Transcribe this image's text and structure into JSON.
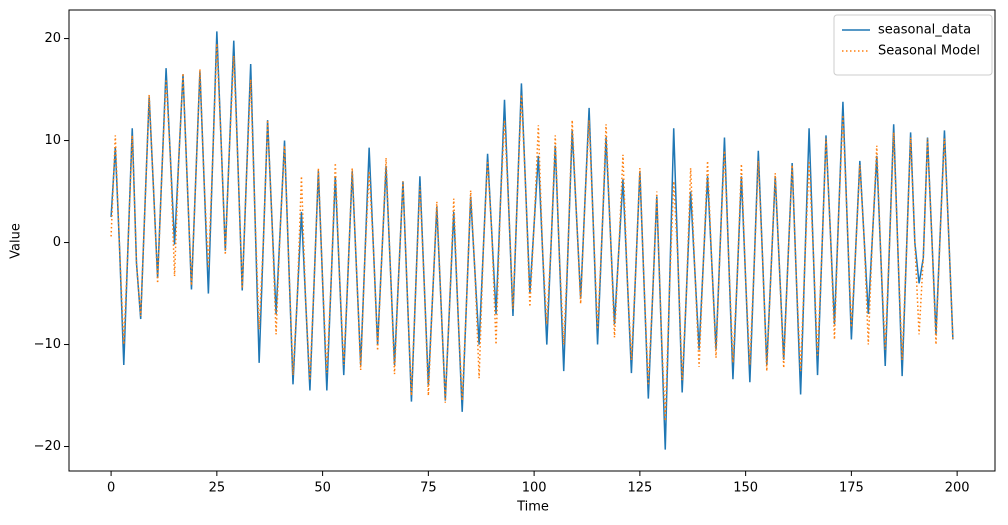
{
  "chart_data": {
    "type": "line",
    "xlabel": "Time",
    "ylabel": "Value",
    "xlim": [
      -9.95,
      208.95
    ],
    "ylim": [
      -22.4,
      22.8
    ],
    "xticks": [
      0,
      25,
      50,
      75,
      100,
      125,
      150,
      175,
      200
    ],
    "yticks": [
      {
        "value": -20,
        "label": "−20"
      },
      {
        "value": -10,
        "label": "−10"
      },
      0,
      10,
      20
    ],
    "grid": false,
    "legend": "upper right",
    "x": [
      0,
      1,
      2,
      3,
      4,
      5,
      6,
      7,
      8,
      9,
      10,
      11,
      12,
      13,
      14,
      15,
      16,
      17,
      18,
      19,
      20,
      21,
      22,
      23,
      24,
      25,
      26,
      27,
      28,
      29,
      30,
      31,
      32,
      33,
      34,
      35,
      36,
      37,
      38,
      39,
      40,
      41,
      42,
      43,
      44,
      45,
      46,
      47,
      48,
      49,
      50,
      51,
      52,
      53,
      54,
      55,
      56,
      57,
      58,
      59,
      60,
      61,
      62,
      63,
      64,
      65,
      66,
      67,
      68,
      69,
      70,
      71,
      72,
      73,
      74,
      75,
      76,
      77,
      78,
      79,
      80,
      81,
      82,
      83,
      84,
      85,
      86,
      87,
      88,
      89,
      90,
      91,
      92,
      93,
      94,
      95,
      96,
      97,
      98,
      99,
      100,
      101,
      102,
      103,
      104,
      105,
      106,
      107,
      108,
      109,
      110,
      111,
      112,
      113,
      114,
      115,
      116,
      117,
      118,
      119,
      120,
      121,
      122,
      123,
      124,
      125,
      126,
      127,
      128,
      129,
      130,
      131,
      132,
      133,
      134,
      135,
      136,
      137,
      138,
      139,
      140,
      141,
      142,
      143,
      144,
      145,
      146,
      147,
      148,
      149,
      150,
      151,
      152,
      153,
      154,
      155,
      156,
      157,
      158,
      159,
      160,
      161,
      162,
      163,
      164,
      165,
      166,
      167,
      168,
      169,
      170,
      171,
      172,
      173,
      174,
      175,
      176,
      177,
      178,
      179,
      180,
      181,
      182,
      183,
      184,
      185,
      186,
      187,
      188,
      189,
      190,
      191,
      192,
      193,
      194,
      195,
      196,
      197,
      198,
      199
    ],
    "series": [
      {
        "name": "seasonal_data",
        "color": "#1f77b4",
        "style": "solid",
        "values": [
          2.5,
          9.3,
          -0.5,
          -12,
          -0.3,
          11.2,
          -2,
          -7.5,
          3.5,
          14.3,
          5.5,
          -3.5,
          6.8,
          17.1,
          8.5,
          -0.2,
          8.2,
          16.5,
          6,
          -4.6,
          6.1,
          16.8,
          5.9,
          -5,
          7.9,
          20.7,
          10,
          -0.8,
          9.5,
          19.8,
          7.5,
          -4.7,
          6.4,
          17.5,
          2.9,
          -11.8,
          0.1,
          12,
          2.5,
          -7,
          1.5,
          10,
          -2,
          -13.9,
          -5.5,
          3,
          -5.8,
          -14.5,
          -3.8,
          7,
          -3.8,
          -14.5,
          -4,
          6.5,
          -3.3,
          -13,
          -3,
          7,
          -2.5,
          -12,
          -1.4,
          9.3,
          -0.4,
          -10,
          -1.3,
          7.5,
          -2.3,
          -12,
          -3,
          6,
          -4.8,
          -15.6,
          -4.6,
          6.5,
          -3.8,
          -14,
          -5.3,
          3.5,
          -6,
          -15.5,
          -6.3,
          3,
          -6.8,
          -16.6,
          -6,
          4.5,
          -2.8,
          -10,
          -0.6,
          8.7,
          0.9,
          -7,
          3.5,
          14,
          3.4,
          -7.2,
          4.2,
          15.6,
          5.3,
          -5,
          1.8,
          8.5,
          -0.8,
          -10,
          -0.3,
          9.5,
          -1.6,
          -12.6,
          -0.8,
          11,
          2.8,
          -5.5,
          3.9,
          13.2,
          1.6,
          -10,
          0.2,
          10.3,
          1.2,
          -8,
          -0.9,
          6.2,
          -3.3,
          -12.8,
          -2.9,
          7,
          -4.2,
          -15.3,
          -5.4,
          4.5,
          -7.9,
          -20.3,
          -4.6,
          11.2,
          -1.8,
          -14.7,
          -4.9,
          5,
          -2.8,
          -10.5,
          -2,
          6.5,
          -2,
          -10.5,
          -0.1,
          10.3,
          -1.6,
          -13.4,
          -3.5,
          6.5,
          -3.6,
          -13.7,
          -2.4,
          9,
          -1.5,
          -12,
          -2.8,
          6.5,
          -2.5,
          -11.5,
          -1.9,
          7.8,
          -3.6,
          -14.9,
          -1.9,
          11.2,
          -0.9,
          -13,
          -1.3,
          10.5,
          1.3,
          -8,
          2.9,
          13.8,
          2.2,
          -9.5,
          -0.8,
          8,
          0.5,
          -7,
          0.8,
          8.5,
          -1.8,
          -12.1,
          -0.3,
          11.6,
          -0.8,
          -13.1,
          -1.2,
          10.8,
          0,
          -4,
          -1.5,
          10.3,
          0.7,
          -9,
          1,
          11,
          0.8,
          -9.5
        ]
      },
      {
        "name": "Seasonal Model",
        "color": "#ff7f0e",
        "style": "dotted",
        "values": [
          0.6,
          10.5,
          -0.5,
          -10,
          -0.3,
          10.5,
          -2,
          -7.2,
          3.5,
          14.5,
          5.5,
          -4,
          6.8,
          16,
          8.5,
          -3.3,
          8.2,
          16.6,
          6,
          -4.2,
          6.1,
          17,
          5.9,
          -2.5,
          7.9,
          19.5,
          10,
          -1.2,
          9.5,
          18.3,
          7.5,
          -4.5,
          6.4,
          16,
          2.9,
          -8.5,
          0.1,
          12,
          2.5,
          -9,
          1.5,
          9.5,
          -2,
          -13,
          -5.5,
          6.5,
          -5.8,
          -13.5,
          -3.8,
          7.3,
          -3.8,
          -12.8,
          -4,
          7.8,
          -3.3,
          -12,
          -3,
          7.3,
          -2.5,
          -12.5,
          -1.4,
          7,
          -0.4,
          -10.6,
          -1.3,
          8.3,
          -2.3,
          -12.9,
          -3,
          6,
          -4.8,
          -15,
          -4.6,
          5.5,
          -3.8,
          -15,
          -5.3,
          4,
          -6,
          -15.7,
          -6.3,
          4.3,
          -6.8,
          -15.5,
          -6,
          5.1,
          -2.8,
          -13.3,
          -0.6,
          8,
          0.9,
          -10,
          3.5,
          12,
          3.4,
          -6.5,
          4.2,
          14.5,
          5.3,
          -6.3,
          1.8,
          11.5,
          -0.8,
          -8,
          -0.3,
          10.5,
          -1.6,
          -10,
          -0.8,
          12,
          2.8,
          -6,
          3.9,
          12,
          1.6,
          -8.5,
          0.2,
          11.6,
          1.2,
          -9.3,
          -0.9,
          8.6,
          -3.3,
          -11.5,
          -2.9,
          7.3,
          -4.2,
          -14,
          -5.4,
          5,
          -7.9,
          -17.5,
          -4.6,
          6,
          -1.8,
          -13.5,
          -4.9,
          7.3,
          -2.8,
          -12.2,
          -2,
          8,
          -2,
          -11.3,
          -0.1,
          9,
          -1.6,
          -11.8,
          -3.5,
          7.7,
          -3.6,
          -12,
          -2.4,
          8,
          -1.5,
          -12.6,
          -2.8,
          6.8,
          -2.5,
          -12.3,
          -1.9,
          7.6,
          -3.6,
          -12.6,
          -1.9,
          8,
          -0.9,
          -11.2,
          -1.3,
          10.2,
          1.3,
          -9.5,
          2.9,
          12.5,
          2.2,
          -8.3,
          -0.8,
          7.6,
          0.5,
          -10,
          0.8,
          9.5,
          -1.8,
          -10.5,
          -0.3,
          10.8,
          -0.8,
          -11.5,
          -1.2,
          10.3,
          0,
          -9,
          -1.5,
          10.2,
          0.7,
          -10,
          1,
          10.2,
          0.8,
          -9.6
        ]
      }
    ]
  }
}
